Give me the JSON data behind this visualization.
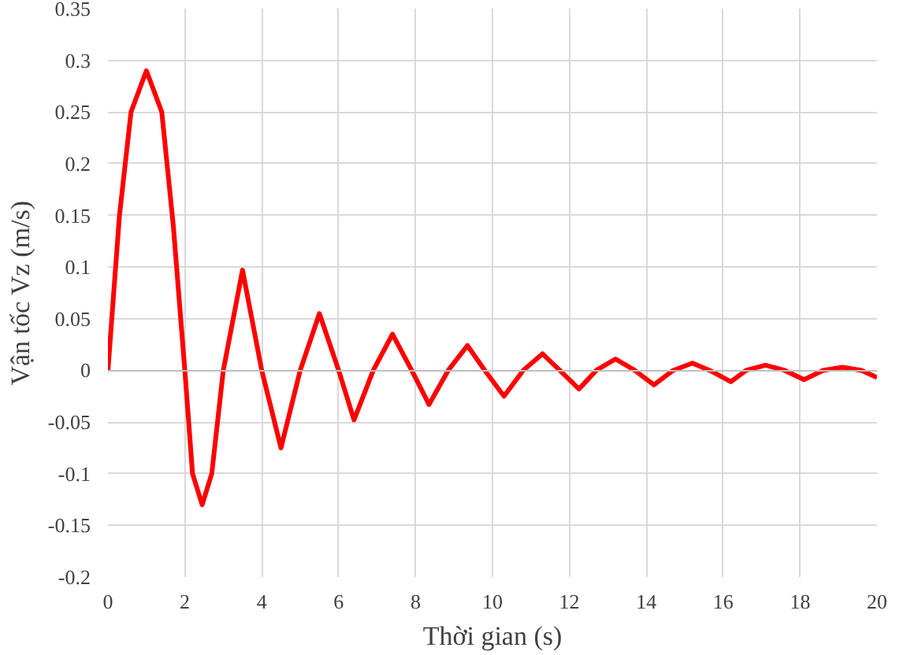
{
  "chart_data": {
    "type": "line",
    "xlabel": "Thời gian (s)",
    "ylabel": "Vận tốc Vz (m/s)",
    "xlim": [
      0,
      20
    ],
    "ylim": [
      -0.2,
      0.35
    ],
    "xticks": [
      0,
      2,
      4,
      6,
      8,
      10,
      12,
      14,
      16,
      18,
      20
    ],
    "yticks": [
      -0.2,
      -0.15,
      -0.1,
      -0.05,
      0,
      0.05,
      0.1,
      0.15,
      0.2,
      0.25,
      0.3,
      0.35
    ],
    "grid": true,
    "marker": "none",
    "line_style": "solid",
    "series": [
      {
        "color": "#ff0000",
        "x": [
          0,
          0.3,
          0.6,
          1.0,
          1.4,
          1.7,
          2.0,
          2.2,
          2.45,
          2.7,
          3.0,
          3.5,
          4.0,
          4.5,
          5.0,
          5.5,
          6.0,
          6.4,
          6.9,
          7.4,
          7.9,
          8.35,
          8.85,
          9.35,
          9.8,
          10.3,
          10.8,
          11.3,
          11.75,
          12.25,
          12.7,
          13.2,
          13.7,
          14.2,
          14.7,
          15.2,
          15.65,
          16.2,
          16.6,
          17.1,
          17.6,
          18.1,
          18.6,
          19.1,
          19.6,
          20
        ],
        "values": [
          0,
          0.15,
          0.25,
          0.29,
          0.25,
          0.14,
          0,
          -0.1,
          -0.13,
          -0.1,
          0,
          0.097,
          0,
          -0.075,
          0,
          0.055,
          0,
          -0.048,
          0,
          0.035,
          0,
          -0.033,
          0,
          0.024,
          0,
          -0.025,
          0,
          0.016,
          0,
          -0.018,
          0,
          0.011,
          0,
          -0.014,
          0,
          0.007,
          0,
          -0.011,
          0,
          0.005,
          0,
          -0.009,
          0,
          0.003,
          0,
          -0.007
        ]
      }
    ]
  }
}
